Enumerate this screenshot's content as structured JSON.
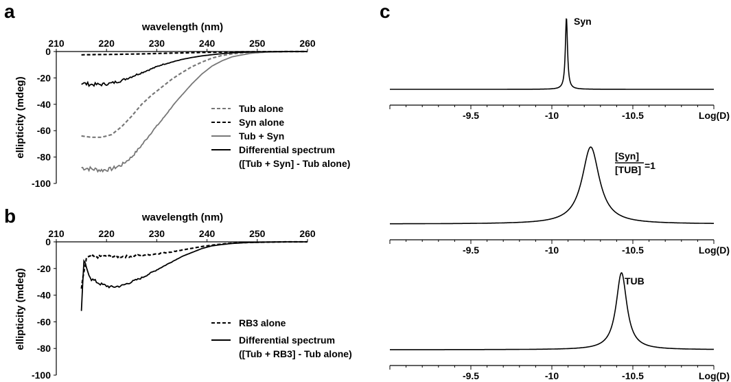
{
  "chart_data": [
    {
      "panel": "a",
      "type": "line",
      "xlabel": "wavelength (nm)",
      "ylabel": "ellipticity (mdeg)",
      "xlim": [
        210,
        260
      ],
      "ylim": [
        -100,
        0
      ],
      "xticks": [
        210,
        220,
        230,
        240,
        250,
        260
      ],
      "yticks": [
        0,
        -20,
        -40,
        -60,
        -80,
        -100
      ],
      "x_axis_position": "top",
      "grid": false,
      "legend_position": "right",
      "series": [
        {
          "name": "Tub alone",
          "style": "dashed",
          "color": "#777777",
          "x": [
            215,
            217,
            219,
            221,
            223,
            225,
            227,
            229,
            231,
            233,
            235,
            237,
            239,
            241,
            243,
            245,
            247,
            249,
            252,
            256,
            260
          ],
          "y": [
            -64,
            -65,
            -65,
            -63,
            -57,
            -49,
            -40,
            -33,
            -27,
            -21,
            -16,
            -11.5,
            -8,
            -5,
            -3,
            -1.8,
            -1,
            -0.5,
            -0.2,
            0,
            0
          ]
        },
        {
          "name": "Syn alone",
          "style": "dashed",
          "color": "#000000",
          "x": [
            215,
            218,
            221,
            224,
            227,
            230,
            233,
            236,
            239,
            242,
            245,
            248,
            252,
            256,
            260
          ],
          "y": [
            -2.5,
            -2.3,
            -2.2,
            -2,
            -1.8,
            -1.5,
            -1.2,
            -1,
            -0.7,
            -0.5,
            -0.3,
            -0.2,
            -0.1,
            0,
            0
          ]
        },
        {
          "name": "Tub + Syn",
          "style": "solid",
          "color": "#777777",
          "x": [
            215,
            217,
            219,
            221,
            223,
            225,
            227,
            229,
            231,
            233,
            235,
            237,
            239,
            241,
            243,
            245,
            247,
            249,
            252,
            256,
            260
          ],
          "y": [
            -88,
            -89,
            -90,
            -89,
            -86,
            -80,
            -71,
            -61,
            -52,
            -42,
            -33,
            -24.5,
            -17,
            -11,
            -7,
            -4,
            -2.5,
            -1.2,
            -0.4,
            0,
            0
          ]
        },
        {
          "name": "Differential spectrum\n([Tub + Syn] - Tub alone)",
          "style": "solid",
          "color": "#000000",
          "x": [
            215,
            217,
            219,
            221,
            223,
            225,
            227,
            229,
            231,
            233,
            235,
            237,
            239,
            241,
            243,
            245,
            247,
            250,
            254,
            260
          ],
          "y": [
            -24,
            -25,
            -25,
            -24,
            -22,
            -19,
            -16,
            -13,
            -10,
            -8,
            -6,
            -4.5,
            -3.3,
            -2.4,
            -1.6,
            -1,
            -0.6,
            -0.3,
            -0.1,
            0
          ]
        }
      ]
    },
    {
      "panel": "b",
      "type": "line",
      "xlabel": "wavelength (nm)",
      "ylabel": "ellipticity (mdeg)",
      "xlim": [
        210,
        260
      ],
      "ylim": [
        -100,
        0
      ],
      "xticks": [
        210,
        220,
        230,
        240,
        250,
        260
      ],
      "yticks": [
        0,
        -20,
        -40,
        -60,
        -80,
        -100
      ],
      "x_axis_position": "top",
      "grid": false,
      "legend_position": "bottom-right",
      "series": [
        {
          "name": "RB3 alone",
          "style": "dashed",
          "color": "#000000",
          "x": [
            215,
            216,
            218,
            221,
            224,
            227,
            230,
            233,
            236,
            239,
            242,
            245,
            248,
            252,
            256,
            260
          ],
          "y": [
            -35,
            -12,
            -11,
            -11,
            -11,
            -10,
            -9,
            -7.5,
            -5.5,
            -3.5,
            -2,
            -1,
            -0.5,
            -0.2,
            0,
            0
          ]
        },
        {
          "name": "Differential spectrum\n([Tub + RB3] - Tub alone)",
          "style": "solid",
          "color": "#000000",
          "x": [
            215,
            215.5,
            216,
            217,
            219,
            221,
            223,
            225,
            227,
            229,
            231,
            233,
            235,
            237,
            239,
            241,
            243,
            245,
            248,
            252,
            256,
            260
          ],
          "y": [
            -53,
            -14,
            -20,
            -28,
            -32,
            -34,
            -33,
            -30,
            -27,
            -23,
            -19,
            -15,
            -11,
            -8,
            -5,
            -3,
            -2,
            -1.2,
            -0.5,
            -0.2,
            0,
            0
          ]
        }
      ]
    },
    {
      "panel": "c",
      "subpanel": "top",
      "type": "line",
      "xlabel": "Log(D)",
      "xticks": [
        -9.5,
        -10,
        -10.5
      ],
      "xlim": [
        -9,
        -11
      ],
      "annotation": "Syn",
      "series": [
        {
          "peak_center": -10.09,
          "peak_width": 0.008,
          "relative_height": 1.0
        }
      ]
    },
    {
      "panel": "c",
      "subpanel": "middle",
      "type": "line",
      "xlabel": "Log(D)",
      "xticks": [
        -9.5,
        -10,
        -10.5
      ],
      "xlim": [
        -9,
        -11
      ],
      "annotation": {
        "numerator": "[Syn]",
        "denominator": "[TUB]",
        "suffix": "=1"
      },
      "series": [
        {
          "peak_center": -10.24,
          "peak_width": 0.065,
          "relative_height": 1.0
        }
      ]
    },
    {
      "panel": "c",
      "subpanel": "bottom",
      "type": "line",
      "xlabel": "Log(D)",
      "xticks": [
        -9.5,
        -10,
        -10.5
      ],
      "xlim": [
        -9,
        -11
      ],
      "annotation": "TUB",
      "series": [
        {
          "peak_center": -10.43,
          "peak_width": 0.04,
          "relative_height": 1.0
        }
      ]
    }
  ]
}
